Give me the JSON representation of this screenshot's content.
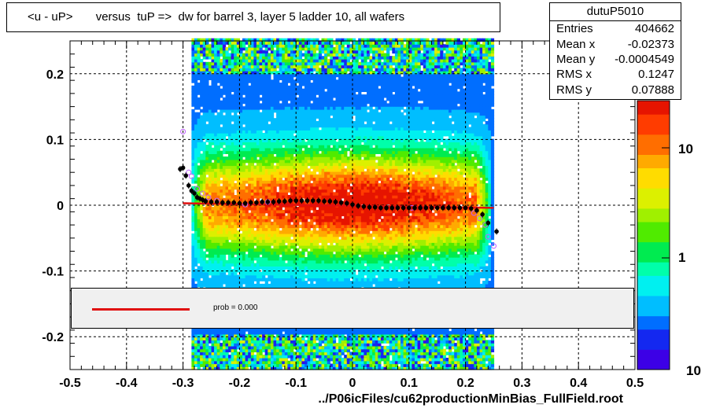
{
  "title": "<u - uP>       versus  tuP =>  dw for barrel 3, layer 5 ladder 10, all wafers",
  "stats": {
    "name": "dutuP5010",
    "rows": [
      {
        "key": "Entries",
        "value": "404662"
      },
      {
        "key": "Mean x",
        "value": "-0.02373"
      },
      {
        "key": "Mean y",
        "value": "-0.0004549"
      },
      {
        "key": "RMS x",
        "value": "0.1247"
      },
      {
        "key": "RMS y",
        "value": "0.07888"
      }
    ]
  },
  "fit_legend": {
    "label": "prob = 0.000",
    "color": "#e01010"
  },
  "xlabel": "../P06icFiles/cu62productionMinBias_FullField.root",
  "colorbar": {
    "tick_labels": [
      "10",
      "1",
      "10"
    ]
  },
  "chart_data": {
    "type": "heatmap",
    "xlim": [
      -0.5,
      0.5
    ],
    "ylim": [
      -0.25,
      0.25
    ],
    "x_tick_labels": [
      "-0.5",
      "-0.4",
      "-0.3",
      "-0.2",
      "-0.1",
      "0",
      "0.1",
      "0.2",
      "0.3",
      "0.4",
      "0.5"
    ],
    "y_tick_labels": [
      "0.2",
      "0.1",
      "0",
      "-0.1",
      "-0.2"
    ],
    "grid": true,
    "profile_points": {
      "x": [
        -0.305,
        -0.3,
        -0.295,
        -0.29,
        -0.285,
        -0.28,
        -0.275,
        -0.27,
        -0.265,
        -0.26,
        -0.25,
        -0.24,
        -0.23,
        -0.22,
        -0.21,
        -0.2,
        -0.19,
        -0.18,
        -0.17,
        -0.16,
        -0.15,
        -0.14,
        -0.13,
        -0.12,
        -0.11,
        -0.1,
        -0.09,
        -0.08,
        -0.07,
        -0.06,
        -0.05,
        -0.04,
        -0.03,
        -0.02,
        -0.01,
        0,
        0.01,
        0.02,
        0.03,
        0.04,
        0.05,
        0.06,
        0.07,
        0.08,
        0.09,
        0.1,
        0.11,
        0.12,
        0.13,
        0.14,
        0.15,
        0.16,
        0.17,
        0.18,
        0.19,
        0.2,
        0.21,
        0.22,
        0.23,
        0.24,
        0.255
      ],
      "y": [
        0.055,
        0.057,
        0.045,
        0.03,
        0.022,
        0.018,
        0.012,
        0.01,
        0.008,
        0.006,
        0.005,
        0.005,
        0.004,
        0.004,
        0.004,
        0.003,
        0.003,
        0.004,
        0.004,
        0.005,
        0.005,
        0.005,
        0.006,
        0.006,
        0.007,
        0.007,
        0.007,
        0.007,
        0.007,
        0.007,
        0.006,
        0.006,
        0.005,
        0.004,
        0.003,
        0.001,
        -0.001,
        -0.002,
        -0.003,
        -0.003,
        -0.004,
        -0.004,
        -0.004,
        -0.004,
        -0.004,
        -0.004,
        -0.004,
        -0.004,
        -0.004,
        -0.004,
        -0.004,
        -0.004,
        -0.004,
        -0.004,
        -0.004,
        -0.004,
        -0.005,
        -0.008,
        -0.014,
        -0.027,
        -0.04
      ]
    },
    "open_points": {
      "x": [
        -0.3,
        -0.29,
        -0.285,
        -0.275,
        -0.265,
        -0.255,
        -0.24,
        -0.19,
        -0.15,
        0.105,
        0.215,
        0.225,
        0.235,
        0.24,
        0.25
      ],
      "y": [
        0.112,
        0.05,
        0.044,
        0.025,
        0.018,
        0.012,
        0.007,
        0.001,
        0.005,
        -0.004,
        -0.012,
        -0.02,
        -0.03,
        -0.048,
        -0.062
      ]
    },
    "fit_line": {
      "x": [
        -0.3,
        0.25
      ],
      "y": [
        0.003,
        -0.004
      ]
    },
    "colorbar_range": [
      0.1,
      30
    ],
    "colorbar_scale": "log"
  }
}
